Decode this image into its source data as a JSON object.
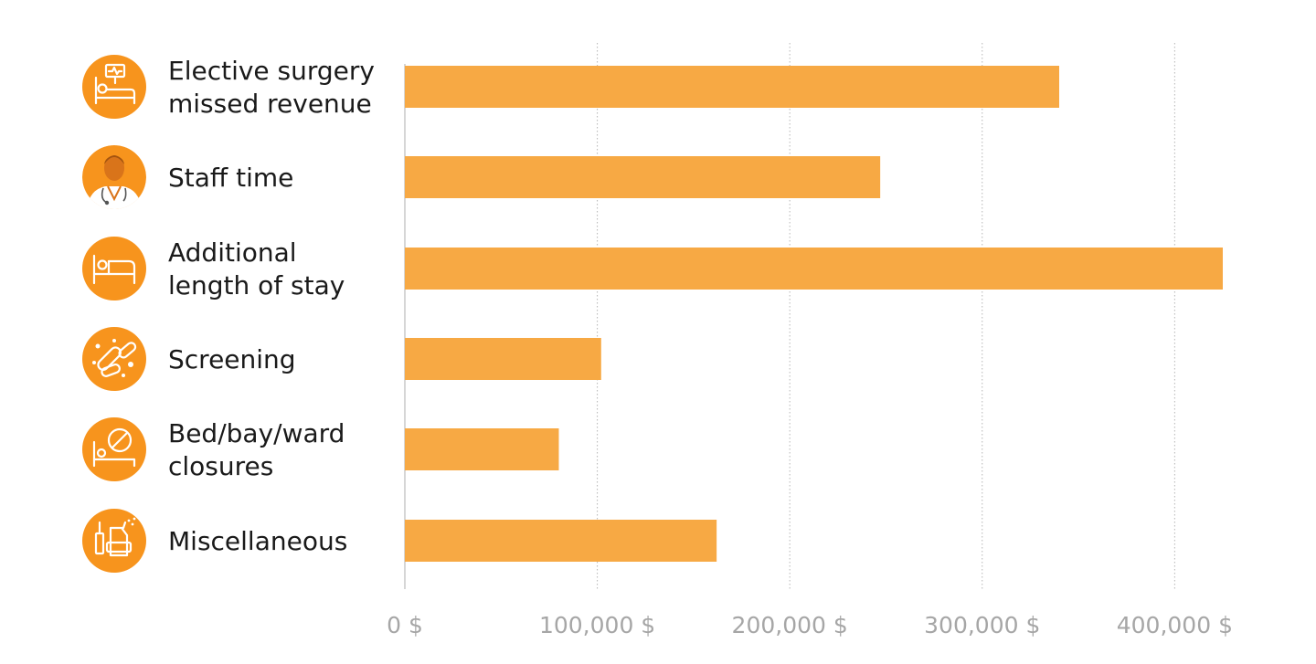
{
  "chart_data": {
    "type": "bar",
    "orientation": "horizontal",
    "categories": [
      {
        "label_lines": [
          "Elective surgery",
          "missed revenue"
        ],
        "icon": "hospital-bed-monitor-icon",
        "value": 340000
      },
      {
        "label_lines": [
          "Staff time"
        ],
        "icon": "doctor-icon",
        "value": 247000
      },
      {
        "label_lines": [
          "Additional",
          "length of stay"
        ],
        "icon": "bed-icon",
        "value": 425000
      },
      {
        "label_lines": [
          "Screening"
        ],
        "icon": "bacteria-icon",
        "value": 102000
      },
      {
        "label_lines": [
          "Bed/bay/ward",
          "closures"
        ],
        "icon": "bed-closed-icon",
        "value": 80000
      },
      {
        "label_lines": [
          "Miscellaneous"
        ],
        "icon": "supplies-icon",
        "value": 162000
      }
    ],
    "x_ticks": [
      {
        "value": 0,
        "label": "0 $"
      },
      {
        "value": 100000,
        "label": "100,000 $"
      },
      {
        "value": 200000,
        "label": "200,000 $"
      },
      {
        "value": 300000,
        "label": "300,000 $"
      },
      {
        "value": 400000,
        "label": "400,000 $"
      }
    ],
    "xlim": [
      0,
      425000
    ],
    "title": "",
    "xlabel": "",
    "ylabel": "",
    "grid": true,
    "legend": "none",
    "colors": {
      "bar": "#f7a944",
      "icon_circle": "#f7941d",
      "gridline": "#b5b5b5",
      "tick_text": "#a6a6a6",
      "label_text": "#1a1a1a"
    }
  }
}
